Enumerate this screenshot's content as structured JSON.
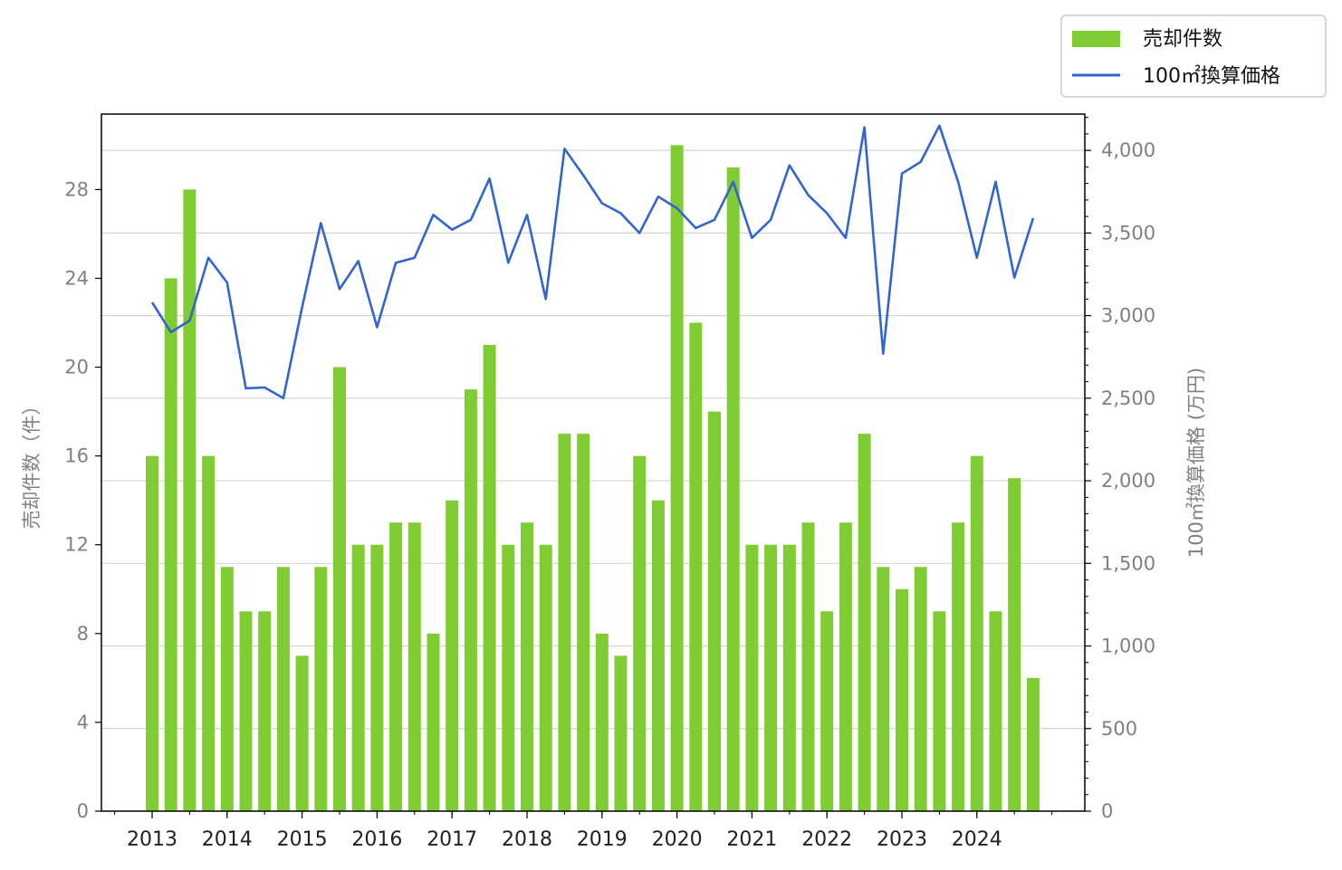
{
  "chart_data": {
    "type": "bar+line",
    "x": [
      "2013-Q1",
      "2013-Q2",
      "2013-Q3",
      "2013-Q4",
      "2014-Q1",
      "2014-Q2",
      "2014-Q3",
      "2014-Q4",
      "2015-Q1",
      "2015-Q2",
      "2015-Q3",
      "2015-Q4",
      "2016-Q1",
      "2016-Q2",
      "2016-Q3",
      "2016-Q4",
      "2017-Q1",
      "2017-Q2",
      "2017-Q3",
      "2017-Q4",
      "2018-Q1",
      "2018-Q2",
      "2018-Q3",
      "2018-Q4",
      "2019-Q1",
      "2019-Q2",
      "2019-Q3",
      "2019-Q4",
      "2020-Q1",
      "2020-Q2",
      "2020-Q3",
      "2020-Q4",
      "2021-Q1",
      "2021-Q2",
      "2021-Q3",
      "2021-Q4",
      "2022-Q1",
      "2022-Q2",
      "2022-Q3",
      "2022-Q4",
      "2023-Q1",
      "2023-Q2",
      "2023-Q3",
      "2023-Q4",
      "2024-Q1",
      "2024-Q2",
      "2024-Q3",
      "2024-Q4"
    ],
    "x_tick_labels": [
      "2013",
      "2014",
      "2015",
      "2016",
      "2017",
      "2018",
      "2019",
      "2020",
      "2021",
      "2022",
      "2023",
      "2024"
    ],
    "series": [
      {
        "name": "売却件数",
        "kind": "bar",
        "axis": "left",
        "color": "#7fcc33",
        "values": [
          16,
          24,
          28,
          16,
          11,
          9,
          9,
          11,
          7,
          11,
          20,
          12,
          12,
          13,
          13,
          8,
          14,
          19,
          21,
          12,
          13,
          12,
          17,
          17,
          8,
          7,
          16,
          14,
          30,
          22,
          18,
          29,
          12,
          12,
          12,
          13,
          9,
          13,
          17,
          11,
          10,
          11,
          9,
          13,
          16,
          9,
          15,
          6
        ]
      },
      {
        "name": "100㎡換算価格",
        "kind": "line",
        "axis": "right",
        "color": "#3366cc",
        "values": [
          3080,
          2900,
          2970,
          3350,
          3200,
          2560,
          2565,
          2500,
          3050,
          3560,
          3160,
          3330,
          2930,
          3320,
          3350,
          3610,
          3520,
          3580,
          3830,
          3320,
          3610,
          3100,
          4010,
          3850,
          3680,
          3620,
          3500,
          3720,
          3650,
          3530,
          3580,
          3810,
          3470,
          3580,
          3910,
          3730,
          3620,
          3470,
          4140,
          2770,
          3860,
          3930,
          4150,
          3810,
          3350,
          3810,
          3230,
          3590
        ]
      }
    ],
    "left_axis": {
      "label": "売却件数（件）",
      "ylim": [
        0,
        31.4
      ],
      "ticks": [
        0,
        4,
        8,
        12,
        16,
        20,
        24,
        28
      ],
      "tick_labels": [
        "0",
        "4",
        "8",
        "12",
        "16",
        "20",
        "24",
        "28"
      ]
    },
    "right_axis": {
      "label": "100㎡換算価格 (万円)",
      "ylim": [
        0,
        4220
      ],
      "ticks": [
        0,
        500,
        1000,
        1500,
        2000,
        2500,
        3000,
        3500,
        4000
      ],
      "tick_labels": [
        "0",
        "500",
        "1,000",
        "1,500",
        "2,000",
        "2,500",
        "3,000",
        "3,500",
        "4,000"
      ]
    },
    "grid": "horizontal, right axis",
    "legend": {
      "placement": "top-right, outside plot",
      "entries": [
        "売却件数",
        "100㎡換算価格"
      ]
    }
  }
}
